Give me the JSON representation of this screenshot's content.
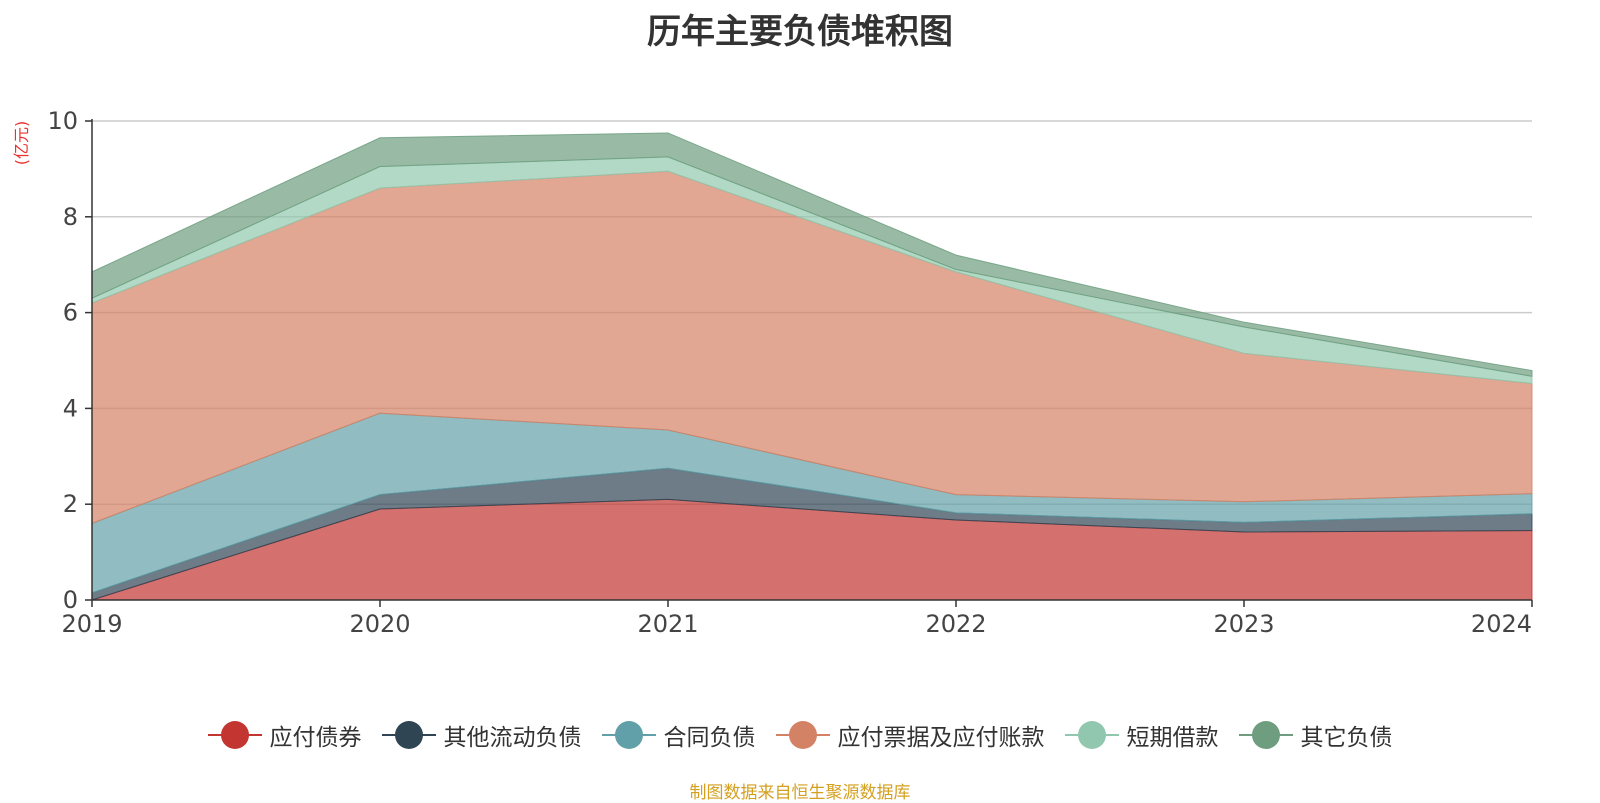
{
  "chart_data": {
    "type": "area",
    "stacked": true,
    "title": "历年主要负债堆积图",
    "ylabel": "(亿元)",
    "xlabel": "",
    "categories": [
      "2019",
      "2020",
      "2021",
      "2022",
      "2023",
      "2024"
    ],
    "ylim": [
      0,
      10
    ],
    "yticks": [
      0,
      2,
      4,
      6,
      8,
      10
    ],
    "grid": true,
    "legend_position": "bottom-center",
    "series": [
      {
        "name": "应付债券",
        "color": "#c23531",
        "values": [
          0.0,
          1.9,
          2.1,
          1.67,
          1.42,
          1.45
        ]
      },
      {
        "name": "其他流动负债",
        "color": "#2f4554",
        "values": [
          0.15,
          0.3,
          0.65,
          0.15,
          0.2,
          0.35
        ]
      },
      {
        "name": "合同负债",
        "color": "#61a0a8",
        "values": [
          1.45,
          1.7,
          0.8,
          0.38,
          0.43,
          0.42
        ]
      },
      {
        "name": "应付票据及应付账款",
        "color": "#d48265",
        "values": [
          4.6,
          4.7,
          5.4,
          4.65,
          3.1,
          2.3
        ]
      },
      {
        "name": "短期借款",
        "color": "#91c7ae",
        "values": [
          0.1,
          0.45,
          0.3,
          0.05,
          0.55,
          0.15
        ]
      },
      {
        "name": "其它负债",
        "color": "#6e9e7f",
        "values": [
          0.55,
          0.6,
          0.5,
          0.3,
          0.1,
          0.12
        ]
      }
    ]
  },
  "source_note": "制图数据来自恒生聚源数据库"
}
